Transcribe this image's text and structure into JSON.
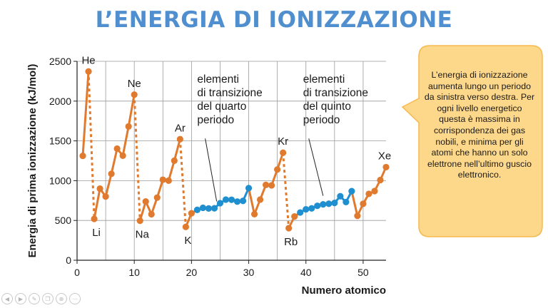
{
  "title": "L’ENERGIA DI IONIZZAZIONE",
  "colors": {
    "title": "#4f8fcf",
    "main_series": "#e07a2e",
    "transition_series": "#1f8fd0",
    "callout_fill": "#fed88a",
    "callout_stroke": "#f6b94e",
    "grid": "#9a9a9a"
  },
  "callout_text": "L’energia di ionizzazione aumenta lungo un periodo da sinistra verso destra. Per ogni livello energetico questa è massima in corrispondenza dei gas nobili, e minima per gli atomi che hanno un solo elettrone nell’ultimo guscio elettronico.",
  "toolbar": {
    "icons": [
      "back-icon",
      "forward-icon",
      "pen-icon",
      "copy-icon",
      "zoom-icon",
      "more-icon"
    ],
    "glyphs": [
      "◀",
      "▶",
      "✎",
      "❐",
      "⊕",
      "⋯"
    ]
  },
  "chart_data": {
    "type": "line",
    "xlabel": "Numero atomico",
    "ylabel": "Energia di prima ionizzazione (kJ/mol)",
    "xlim": [
      0,
      54
    ],
    "ylim": [
      0,
      2500
    ],
    "xticks": [
      0,
      10,
      20,
      30,
      40,
      50
    ],
    "yticks": [
      0,
      500,
      1000,
      1500,
      2000,
      2500
    ],
    "x_gridlines": [
      5,
      10,
      15,
      20,
      25,
      30,
      35,
      40,
      45,
      50
    ],
    "grid": true,
    "series": [
      {
        "kind": "main",
        "points": [
          [
            1,
            1312
          ],
          [
            2,
            2372
          ],
          [
            3,
            520
          ],
          [
            4,
            900
          ],
          [
            5,
            801
          ],
          [
            6,
            1086
          ],
          [
            7,
            1402
          ],
          [
            8,
            1314
          ],
          [
            9,
            1681
          ],
          [
            10,
            2081
          ],
          [
            11,
            496
          ],
          [
            12,
            738
          ],
          [
            13,
            578
          ],
          [
            14,
            787
          ],
          [
            15,
            1012
          ],
          [
            16,
            1000
          ],
          [
            17,
            1251
          ],
          [
            18,
            1521
          ],
          [
            19,
            419
          ],
          [
            20,
            590
          ],
          [
            31,
            579
          ],
          [
            32,
            762
          ],
          [
            33,
            947
          ],
          [
            34,
            941
          ],
          [
            35,
            1140
          ],
          [
            36,
            1351
          ],
          [
            37,
            403
          ],
          [
            38,
            550
          ],
          [
            49,
            558
          ],
          [
            50,
            709
          ],
          [
            51,
            834
          ],
          [
            52,
            869
          ],
          [
            53,
            1008
          ],
          [
            54,
            1170
          ]
        ],
        "dashed_segments": [
          [
            2,
            3
          ],
          [
            10,
            11
          ],
          [
            18,
            19
          ],
          [
            36,
            37
          ]
        ]
      },
      {
        "kind": "transition",
        "points": [
          [
            21,
            633
          ],
          [
            22,
            659
          ],
          [
            23,
            651
          ],
          [
            24,
            653
          ],
          [
            25,
            717
          ],
          [
            26,
            762
          ],
          [
            27,
            760
          ],
          [
            28,
            737
          ],
          [
            29,
            746
          ],
          [
            30,
            906
          ]
        ]
      },
      {
        "kind": "transition",
        "points": [
          [
            39,
            600
          ],
          [
            40,
            640
          ],
          [
            41,
            652
          ],
          [
            42,
            684
          ],
          [
            43,
            702
          ],
          [
            44,
            710
          ],
          [
            45,
            720
          ],
          [
            46,
            804
          ],
          [
            47,
            731
          ],
          [
            48,
            868
          ]
        ]
      }
    ],
    "element_labels": [
      {
        "text": "He",
        "x": 2,
        "pos": "above"
      },
      {
        "text": "Ne",
        "x": 10,
        "pos": "above"
      },
      {
        "text": "Ar",
        "x": 18,
        "pos": "above"
      },
      {
        "text": "Kr",
        "x": 36,
        "pos": "above"
      },
      {
        "text": "Xe",
        "x": 54,
        "pos": "above"
      },
      {
        "text": "Li",
        "x": 3,
        "pos": "below"
      },
      {
        "text": "Na",
        "x": 11,
        "pos": "below"
      },
      {
        "text": "K",
        "x": 19,
        "pos": "below"
      },
      {
        "text": "Rb",
        "x": 37,
        "pos": "below"
      }
    ],
    "annotations": [
      {
        "lines": [
          "elementi",
          "di transizione",
          "del quarto",
          "periodo"
        ],
        "x": 21.0,
        "y": 2230,
        "pointer_to": [
          24.4,
          740
        ],
        "pointer_from": [
          22.4,
          1530
        ]
      },
      {
        "lines": [
          "elementi",
          "di transizione",
          "del quinto",
          "periodo"
        ],
        "x": 39.5,
        "y": 2230,
        "pointer_to": [
          43.0,
          810
        ],
        "pointer_from": [
          40.5,
          1530
        ]
      }
    ]
  }
}
